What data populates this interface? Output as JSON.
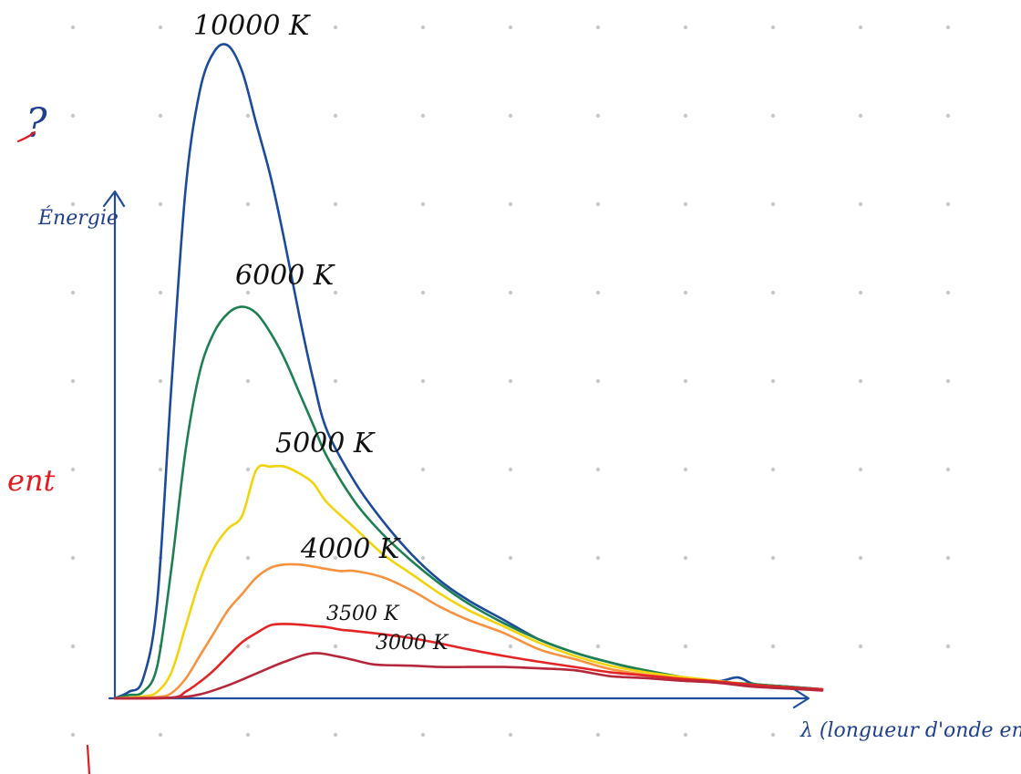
{
  "chart_data": {
    "type": "line",
    "title": "",
    "xlabel": "λ (longueur d'onde en m)",
    "ylabel": "Énergie",
    "xlim": [
      0,
      100
    ],
    "ylim": [
      0,
      100
    ],
    "grid": "dotted",
    "legend": "inline labels at curve peaks",
    "series": [
      {
        "name": "10000 K",
        "label": "10000 K",
        "color": "#1c4a9c",
        "x": [
          0,
          2,
          4,
          6,
          8,
          10,
          12,
          14,
          16,
          18,
          20,
          22,
          24,
          26,
          28,
          30,
          34,
          38,
          42,
          46,
          50,
          55,
          60,
          65,
          70,
          75,
          80,
          85,
          88,
          90,
          92,
          95,
          100
        ],
        "y": [
          0,
          1,
          3,
          15,
          48,
          78,
          93,
          99,
          100,
          96,
          88,
          80,
          70,
          59,
          49,
          41,
          33,
          27,
          22,
          18,
          15,
          12,
          9,
          7,
          5.5,
          4.2,
          3.2,
          2.6,
          3.2,
          2.3,
          2,
          1.8,
          1.4
        ]
      },
      {
        "name": "6000 K",
        "label": "6000 K",
        "color": "#1d8050",
        "x": [
          0,
          2,
          4,
          6,
          8,
          10,
          12,
          14,
          16,
          18,
          20,
          22,
          24,
          26,
          28,
          30,
          34,
          38,
          42,
          46,
          50,
          55,
          60,
          65,
          70,
          75,
          80,
          85,
          90,
          95,
          100
        ],
        "y": [
          0,
          0.5,
          1,
          5,
          20,
          38,
          50,
          56,
          59,
          60,
          59,
          56,
          52,
          47,
          42,
          37,
          30,
          25,
          21,
          17.5,
          14.5,
          11.5,
          9,
          7,
          5.5,
          4.3,
          3.3,
          2.6,
          2.2,
          1.8,
          1.4
        ]
      },
      {
        "name": "5000 K",
        "label": "5000 K",
        "color": "#f2d40c",
        "x": [
          0,
          4,
          6,
          8,
          10,
          12,
          14,
          16,
          18,
          20,
          22,
          24,
          26,
          28,
          30,
          34,
          38,
          42,
          46,
          50,
          55,
          60,
          65,
          70,
          75,
          80,
          85,
          90,
          95,
          100
        ],
        "y": [
          0,
          0.3,
          1,
          4,
          11,
          18,
          23,
          26,
          28,
          35,
          35.5,
          35.5,
          34.5,
          33,
          30,
          26,
          22,
          19,
          16,
          13.5,
          11,
          8.5,
          6.5,
          5,
          4,
          3.3,
          2.7,
          2.1,
          1.7,
          1.3
        ]
      },
      {
        "name": "4000 K",
        "label": "4000 K",
        "color": "#f7923f",
        "x": [
          0,
          6,
          8,
          10,
          12,
          14,
          16,
          18,
          20,
          22,
          24,
          26,
          28,
          30,
          32,
          34,
          38,
          42,
          46,
          50,
          55,
          60,
          65,
          70,
          75,
          80,
          85,
          90,
          95,
          100
        ],
        "y": [
          0,
          0.2,
          0.8,
          3,
          6.5,
          10,
          13.5,
          16,
          18.5,
          20,
          20.5,
          20.5,
          20.2,
          19.8,
          19.5,
          19.5,
          18.5,
          16.5,
          14,
          12,
          10,
          7.5,
          6,
          4.5,
          3.6,
          3,
          2.5,
          2,
          1.6,
          1.3
        ]
      },
      {
        "name": "3500 K",
        "label": "3500 K",
        "color": "#e32526",
        "x": [
          0,
          8,
          10,
          12,
          14,
          16,
          18,
          20,
          22,
          24,
          26,
          28,
          30,
          32,
          34,
          38,
          42,
          46,
          50,
          55,
          60,
          65,
          70,
          75,
          80,
          85,
          90,
          95,
          100
        ],
        "y": [
          0,
          0.1,
          1,
          2.5,
          4.3,
          6.5,
          8.6,
          10,
          11.2,
          11.4,
          11.3,
          11.1,
          10.9,
          10.5,
          10.3,
          9.8,
          9.2,
          8.4,
          7.5,
          6.5,
          5.6,
          4.8,
          4,
          3.5,
          3,
          2.6,
          2.1,
          1.7,
          1.4
        ]
      },
      {
        "name": "3000 K",
        "label": "3000 K",
        "color": "#b5283c",
        "x": [
          0,
          8,
          12,
          16,
          20,
          24,
          28,
          32,
          36,
          38,
          42,
          46,
          50,
          55,
          60,
          65,
          70,
          75,
          80,
          85,
          90,
          95,
          100
        ],
        "y": [
          0,
          0.1,
          0.6,
          2,
          3.8,
          5.6,
          6.9,
          6.3,
          5.3,
          5.1,
          5,
          4.8,
          4.8,
          4.8,
          4.6,
          4.3,
          3.4,
          3.1,
          2.7,
          2.4,
          1.8,
          1.5,
          1.2
        ]
      }
    ]
  },
  "margin": {
    "question_mark": "?",
    "red_fragment": "ent"
  }
}
